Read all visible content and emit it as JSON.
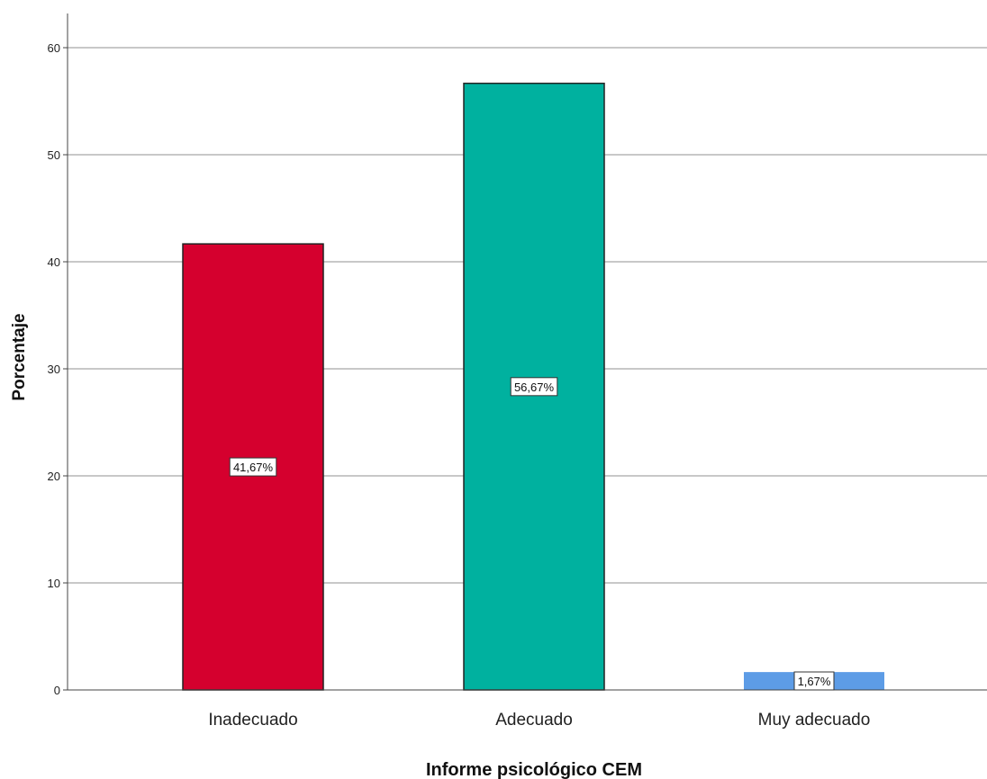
{
  "chart_data": {
    "type": "bar",
    "xlabel": "Informe psicológico CEM",
    "ylabel": "Porcentaje",
    "ylim": [
      0,
      63
    ],
    "yticks": [
      0,
      10,
      20,
      30,
      40,
      50,
      60
    ],
    "grid": true,
    "categories": [
      "Inadecuado",
      "Adecuado",
      "Muy adecuado"
    ],
    "values": [
      41.67,
      56.67,
      1.67
    ],
    "data_labels": [
      "41,67%",
      "56,67%",
      "1,67%"
    ],
    "colors": [
      "#d5002e",
      "#00b19f",
      "#5d9ce6"
    ]
  }
}
